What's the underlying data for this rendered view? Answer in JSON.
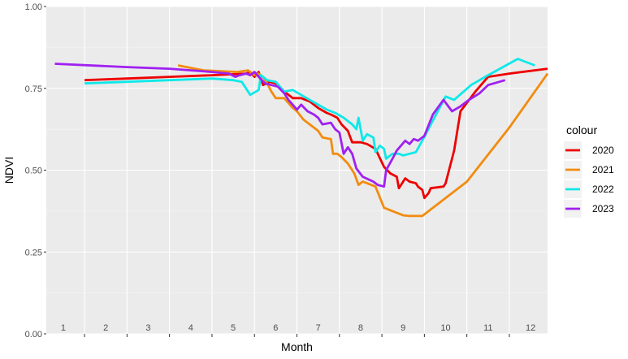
{
  "chart_data": {
    "type": "line",
    "xlabel": "Month",
    "ylabel": "NDVI",
    "xlim": [
      0.6,
      12.4
    ],
    "ylim": [
      0,
      1
    ],
    "y_ticks": [
      "0.00",
      "0.25",
      "0.50",
      "0.75",
      "1.00"
    ],
    "month_labels": [
      "1",
      "2",
      "3",
      "4",
      "5",
      "6",
      "7",
      "8",
      "9",
      "10",
      "11",
      "12"
    ],
    "grid": true,
    "legend": {
      "title": "colour",
      "position": "right"
    },
    "series": [
      {
        "name": "2020",
        "color": "#ee0000",
        "points": [
          [
            1.5,
            0.775
          ],
          [
            2.5,
            0.78
          ],
          [
            3.5,
            0.785
          ],
          [
            4.5,
            0.79
          ],
          [
            5.3,
            0.795
          ],
          [
            5.4,
            0.8
          ],
          [
            5.5,
            0.785
          ],
          [
            5.6,
            0.8
          ],
          [
            5.7,
            0.76
          ],
          [
            5.85,
            0.77
          ],
          [
            6,
            0.765
          ],
          [
            6.2,
            0.74
          ],
          [
            6.4,
            0.72
          ],
          [
            6.6,
            0.72
          ],
          [
            6.8,
            0.71
          ],
          [
            7,
            0.69
          ],
          [
            7.2,
            0.675
          ],
          [
            7.3,
            0.67
          ],
          [
            7.45,
            0.66
          ],
          [
            7.55,
            0.64
          ],
          [
            7.7,
            0.62
          ],
          [
            7.8,
            0.585
          ],
          [
            8,
            0.585
          ],
          [
            8.15,
            0.58
          ],
          [
            8.35,
            0.565
          ],
          [
            8.55,
            0.51
          ],
          [
            8.7,
            0.49
          ],
          [
            8.85,
            0.48
          ],
          [
            8.9,
            0.445
          ],
          [
            9.05,
            0.475
          ],
          [
            9.15,
            0.465
          ],
          [
            9.3,
            0.46
          ],
          [
            9.35,
            0.45
          ],
          [
            9.45,
            0.44
          ],
          [
            9.5,
            0.415
          ],
          [
            9.6,
            0.43
          ],
          [
            9.65,
            0.445
          ],
          [
            9.95,
            0.45
          ],
          [
            10,
            0.46
          ],
          [
            10.2,
            0.56
          ],
          [
            10.35,
            0.68
          ],
          [
            10.7,
            0.74
          ],
          [
            11,
            0.785
          ],
          [
            11.5,
            0.795
          ],
          [
            12.4,
            0.81
          ]
        ]
      },
      {
        "name": "2021",
        "color": "#f28c10",
        "points": [
          [
            3.7,
            0.82
          ],
          [
            4.3,
            0.805
          ],
          [
            5.1,
            0.8
          ],
          [
            5.35,
            0.805
          ],
          [
            5.5,
            0.79
          ],
          [
            5.6,
            0.795
          ],
          [
            5.7,
            0.785
          ],
          [
            5.8,
            0.765
          ],
          [
            5.9,
            0.74
          ],
          [
            6.0,
            0.72
          ],
          [
            6.2,
            0.72
          ],
          [
            6.4,
            0.69
          ],
          [
            6.5,
            0.68
          ],
          [
            6.65,
            0.655
          ],
          [
            6.85,
            0.635
          ],
          [
            7.0,
            0.62
          ],
          [
            7.1,
            0.6
          ],
          [
            7.3,
            0.595
          ],
          [
            7.35,
            0.55
          ],
          [
            7.45,
            0.55
          ],
          [
            7.55,
            0.54
          ],
          [
            7.7,
            0.52
          ],
          [
            7.85,
            0.49
          ],
          [
            7.95,
            0.455
          ],
          [
            8.05,
            0.465
          ],
          [
            8.15,
            0.46
          ],
          [
            8.35,
            0.45
          ],
          [
            8.55,
            0.385
          ],
          [
            8.75,
            0.375
          ],
          [
            9.0,
            0.362
          ],
          [
            9.15,
            0.36
          ],
          [
            9.3,
            0.36
          ],
          [
            9.45,
            0.36
          ],
          [
            10.5,
            0.465
          ],
          [
            11.5,
            0.63
          ],
          [
            12.4,
            0.795
          ]
        ]
      },
      {
        "name": "2022",
        "color": "#10e8e8",
        "points": [
          [
            1.5,
            0.765
          ],
          [
            2.5,
            0.77
          ],
          [
            3.5,
            0.775
          ],
          [
            4.5,
            0.78
          ],
          [
            5,
            0.775
          ],
          [
            5.2,
            0.77
          ],
          [
            5.4,
            0.73
          ],
          [
            5.6,
            0.745
          ],
          [
            5.65,
            0.79
          ],
          [
            5.8,
            0.775
          ],
          [
            6,
            0.77
          ],
          [
            6.2,
            0.74
          ],
          [
            6.4,
            0.745
          ],
          [
            6.6,
            0.73
          ],
          [
            6.8,
            0.715
          ],
          [
            7,
            0.7
          ],
          [
            7.2,
            0.685
          ],
          [
            7.4,
            0.675
          ],
          [
            7.6,
            0.66
          ],
          [
            7.8,
            0.64
          ],
          [
            7.9,
            0.625
          ],
          [
            7.95,
            0.66
          ],
          [
            8.05,
            0.59
          ],
          [
            8.15,
            0.61
          ],
          [
            8.3,
            0.6
          ],
          [
            8.35,
            0.555
          ],
          [
            8.45,
            0.575
          ],
          [
            8.55,
            0.565
          ],
          [
            8.6,
            0.535
          ],
          [
            8.75,
            0.55
          ],
          [
            8.9,
            0.55
          ],
          [
            9,
            0.545
          ],
          [
            9.15,
            0.55
          ],
          [
            9.3,
            0.555
          ],
          [
            9.45,
            0.59
          ],
          [
            10,
            0.725
          ],
          [
            10.2,
            0.715
          ],
          [
            10.6,
            0.76
          ],
          [
            11,
            0.79
          ],
          [
            11.7,
            0.84
          ],
          [
            12.1,
            0.82
          ]
        ]
      },
      {
        "name": "2023",
        "color": "#a020f0",
        "points": [
          [
            0.8,
            0.825
          ],
          [
            2.5,
            0.815
          ],
          [
            3.5,
            0.81
          ],
          [
            4.5,
            0.8
          ],
          [
            4.9,
            0.795
          ],
          [
            5.05,
            0.785
          ],
          [
            5.15,
            0.79
          ],
          [
            5.3,
            0.795
          ],
          [
            5.4,
            0.79
          ],
          [
            5.5,
            0.8
          ],
          [
            5.6,
            0.785
          ],
          [
            5.75,
            0.765
          ],
          [
            5.9,
            0.76
          ],
          [
            6.05,
            0.755
          ],
          [
            6.2,
            0.735
          ],
          [
            6.3,
            0.715
          ],
          [
            6.5,
            0.685
          ],
          [
            6.6,
            0.7
          ],
          [
            6.75,
            0.68
          ],
          [
            6.9,
            0.67
          ],
          [
            7.0,
            0.66
          ],
          [
            7.1,
            0.64
          ],
          [
            7.3,
            0.645
          ],
          [
            7.4,
            0.625
          ],
          [
            7.5,
            0.615
          ],
          [
            7.6,
            0.55
          ],
          [
            7.7,
            0.57
          ],
          [
            7.8,
            0.55
          ],
          [
            7.9,
            0.505
          ],
          [
            8.05,
            0.48
          ],
          [
            8.3,
            0.465
          ],
          [
            8.4,
            0.455
          ],
          [
            8.55,
            0.45
          ],
          [
            8.6,
            0.5
          ],
          [
            8.75,
            0.535
          ],
          [
            8.85,
            0.56
          ],
          [
            8.95,
            0.575
          ],
          [
            9.05,
            0.59
          ],
          [
            9.15,
            0.58
          ],
          [
            9.25,
            0.595
          ],
          [
            9.35,
            0.59
          ],
          [
            9.5,
            0.605
          ],
          [
            9.7,
            0.67
          ],
          [
            9.95,
            0.715
          ],
          [
            10.15,
            0.68
          ],
          [
            10.35,
            0.695
          ],
          [
            10.55,
            0.715
          ],
          [
            10.8,
            0.735
          ],
          [
            11,
            0.76
          ],
          [
            11.4,
            0.775
          ]
        ]
      }
    ]
  }
}
